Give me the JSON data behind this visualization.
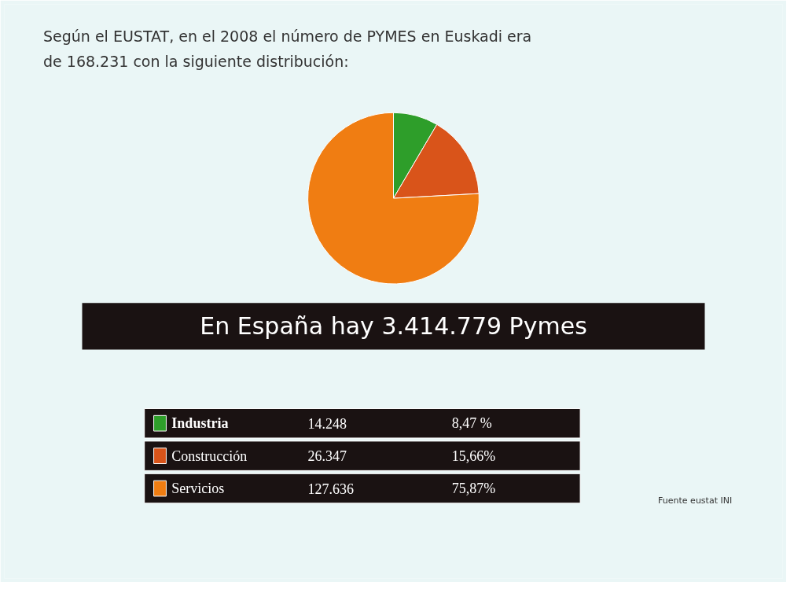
{
  "chart_data": {
    "type": "pie",
    "title": "Según el EUSTAT, en el 2008 el número de PYMES en Euskadi era de 168.231 con la siguiente distribución:",
    "categories": [
      "Industria",
      "Construcción",
      "Servicios"
    ],
    "values": [
      8.47,
      15.66,
      75.87
    ],
    "colors": [
      "#2e9e2a",
      "#d9541a",
      "#f07d12"
    ],
    "legend": "bottom",
    "value_labels": [
      "8,47 %",
      "15,66%",
      "75,87%"
    ],
    "annotations": [
      "En España hay 3.414.779 Pymes",
      "Fuente eustat INI",
      "14.248",
      "26.347",
      "127.636"
    ]
  }
}
